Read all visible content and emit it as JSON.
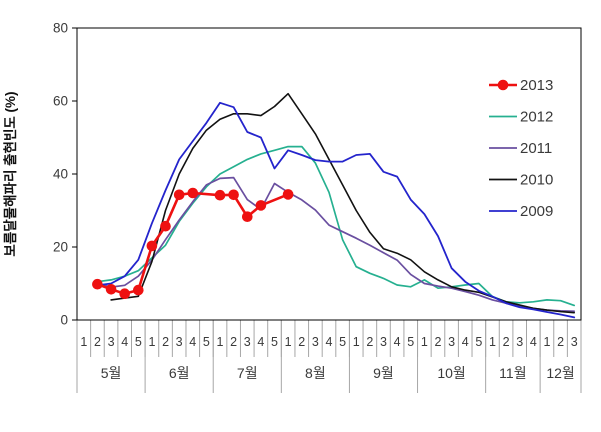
{
  "chart_data": {
    "type": "line",
    "title": "",
    "ylabel": "보름달물해파리 출현빈도 (%)",
    "xlabel": "",
    "grid": false,
    "legend_position": "right-inside",
    "y_axis": {
      "min": 0,
      "max": 80,
      "ticks": [
        0,
        20,
        40,
        60,
        80
      ]
    },
    "x_axis": {
      "unit": "week-of-month, May through December",
      "months": [
        {
          "label": "5월",
          "weeks": 5
        },
        {
          "label": "6월",
          "weeks": 5
        },
        {
          "label": "7월",
          "weeks": 5
        },
        {
          "label": "8월",
          "weeks": 5
        },
        {
          "label": "9월",
          "weeks": 5
        },
        {
          "label": "10월",
          "weeks": 5
        },
        {
          "label": "11월",
          "weeks": 4
        },
        {
          "label": "12월",
          "weeks": 3
        }
      ],
      "total_weeks": 37
    },
    "series": [
      {
        "name": "2013",
        "color": "#ee1111",
        "marker": "filled-circle",
        "line_width": 2.6,
        "points": [
          [
            2,
            9.8
          ],
          [
            3,
            8.4
          ],
          [
            4,
            7.2
          ],
          [
            5,
            8.2
          ],
          [
            6,
            20.3
          ],
          [
            7,
            25.7
          ],
          [
            8,
            34.3
          ],
          [
            9,
            34.8
          ],
          [
            11,
            34.2
          ],
          [
            12,
            34.3
          ],
          [
            13,
            28.3
          ],
          [
            14,
            31.4
          ],
          [
            16,
            34.4
          ]
        ]
      },
      {
        "name": "2012",
        "color": "#26b090",
        "marker": "none",
        "line_width": 1.7,
        "points": [
          [
            2,
            10.5
          ],
          [
            3,
            11
          ],
          [
            4,
            12
          ],
          [
            5,
            13.5
          ],
          [
            6,
            17
          ],
          [
            7,
            20.5
          ],
          [
            8,
            27
          ],
          [
            9,
            32
          ],
          [
            10,
            36.5
          ],
          [
            11,
            40
          ],
          [
            12,
            42
          ],
          [
            13,
            44
          ],
          [
            14,
            45.5
          ],
          [
            15,
            46.5
          ],
          [
            16,
            47.5
          ],
          [
            17,
            47.5
          ],
          [
            18,
            43
          ],
          [
            19,
            35
          ],
          [
            20,
            22
          ],
          [
            21,
            14.6
          ],
          [
            22,
            12.8
          ],
          [
            23,
            11.4
          ],
          [
            24,
            9.6
          ],
          [
            25,
            9.1
          ],
          [
            26,
            11
          ],
          [
            27,
            8.7
          ],
          [
            28,
            9.1
          ],
          [
            29,
            9.6
          ],
          [
            30,
            10
          ],
          [
            31,
            6.4
          ],
          [
            32,
            5
          ],
          [
            33,
            4.7
          ],
          [
            34,
            5
          ],
          [
            35,
            5.5
          ],
          [
            36,
            5.3
          ],
          [
            37,
            4
          ]
        ]
      },
      {
        "name": "2011",
        "color": "#6a4fa0",
        "marker": "none",
        "line_width": 1.7,
        "points": [
          [
            2,
            10
          ],
          [
            3,
            9
          ],
          [
            4,
            9.5
          ],
          [
            5,
            12
          ],
          [
            6,
            16.4
          ],
          [
            7,
            22
          ],
          [
            8,
            27.4
          ],
          [
            9,
            32.4
          ],
          [
            10,
            37
          ],
          [
            11,
            38.8
          ],
          [
            12,
            39
          ],
          [
            13,
            33
          ],
          [
            14,
            30.3
          ],
          [
            15,
            37.4
          ],
          [
            16,
            35
          ],
          [
            17,
            32.9
          ],
          [
            18,
            30.1
          ],
          [
            19,
            26
          ],
          [
            20,
            24.2
          ],
          [
            21,
            22.4
          ],
          [
            22,
            20.5
          ],
          [
            23,
            18.4
          ],
          [
            24,
            16.4
          ],
          [
            25,
            12.5
          ],
          [
            26,
            10
          ],
          [
            27,
            9.3
          ],
          [
            28,
            8.7
          ],
          [
            29,
            7.8
          ],
          [
            30,
            6.8
          ],
          [
            31,
            5.5
          ],
          [
            32,
            4.6
          ],
          [
            33,
            3.8
          ],
          [
            34,
            3.2
          ],
          [
            35,
            2.7
          ],
          [
            36,
            2.5
          ],
          [
            37,
            2.4
          ]
        ]
      },
      {
        "name": "2010",
        "color": "#121212",
        "marker": "none",
        "line_width": 1.6,
        "points": [
          [
            3,
            5.5
          ],
          [
            4,
            6
          ],
          [
            5,
            6.5
          ],
          [
            6,
            16
          ],
          [
            7,
            30
          ],
          [
            8,
            40
          ],
          [
            9,
            47
          ],
          [
            10,
            52
          ],
          [
            11,
            55
          ],
          [
            12,
            56.5
          ],
          [
            13,
            56.5
          ],
          [
            14,
            56
          ],
          [
            15,
            58.5
          ],
          [
            16,
            62
          ],
          [
            17,
            56.5
          ],
          [
            18,
            51
          ],
          [
            19,
            44
          ],
          [
            20,
            37
          ],
          [
            21,
            30
          ],
          [
            22,
            24
          ],
          [
            23,
            19.5
          ],
          [
            24,
            18.3
          ],
          [
            25,
            16.5
          ],
          [
            26,
            13.2
          ],
          [
            27,
            11
          ],
          [
            28,
            9.1
          ],
          [
            29,
            8.2
          ],
          [
            30,
            7.6
          ],
          [
            31,
            6.3
          ],
          [
            32,
            5
          ],
          [
            33,
            4.1
          ],
          [
            34,
            3.2
          ],
          [
            35,
            2.7
          ],
          [
            36,
            2.3
          ],
          [
            37,
            2
          ]
        ]
      },
      {
        "name": "2009",
        "color": "#2424cc",
        "marker": "none",
        "line_width": 1.8,
        "points": [
          [
            2,
            9.5
          ],
          [
            3,
            10
          ],
          [
            4,
            12
          ],
          [
            5,
            16.5
          ],
          [
            6,
            26.5
          ],
          [
            7,
            35.5
          ],
          [
            8,
            44
          ],
          [
            9,
            49
          ],
          [
            10,
            54
          ],
          [
            11,
            59.5
          ],
          [
            12,
            58.3
          ],
          [
            13,
            51.5
          ],
          [
            14,
            50
          ],
          [
            15,
            41.5
          ],
          [
            16,
            46.5
          ],
          [
            17,
            45.2
          ],
          [
            18,
            43.8
          ],
          [
            19,
            43.4
          ],
          [
            20,
            43.4
          ],
          [
            21,
            45.2
          ],
          [
            22,
            45.5
          ],
          [
            23,
            40.6
          ],
          [
            24,
            39.3
          ],
          [
            25,
            33
          ],
          [
            26,
            29
          ],
          [
            27,
            23
          ],
          [
            28,
            14.2
          ],
          [
            29,
            10.5
          ],
          [
            30,
            8
          ],
          [
            31,
            6.4
          ],
          [
            32,
            4.6
          ],
          [
            33,
            3.5
          ],
          [
            34,
            2.9
          ],
          [
            35,
            2.2
          ],
          [
            36,
            1.5
          ],
          [
            37,
            0.7
          ]
        ]
      }
    ],
    "legend": {
      "labels": [
        "2013",
        "2012",
        "2011",
        "2010",
        "2009"
      ]
    },
    "text_color": "#3a3a3a",
    "axis_color": "#000000",
    "separator_color": "#a6a6a6"
  }
}
